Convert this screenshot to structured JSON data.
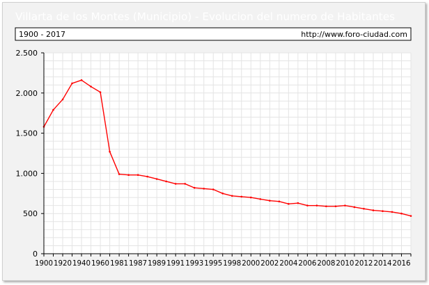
{
  "chart_data": {
    "type": "line",
    "title": "Villarta de los Montes (Municipio) - Evolucion del numero de Habitantes",
    "period": "1900 - 2017",
    "source": "http://www.foro-ciudad.com",
    "xlabel": "",
    "ylabel": "",
    "ylim": [
      0,
      2500
    ],
    "yticks": [
      0,
      500,
      1000,
      1500,
      2000,
      2500
    ],
    "ytick_labels": [
      "0",
      "500",
      "1.000",
      "1.500",
      "2.000",
      "2.500"
    ],
    "categories": [
      "1900",
      "1910",
      "1920",
      "1930",
      "1940",
      "1950",
      "1960",
      "1970",
      "1981",
      "1986",
      "1987",
      "1988",
      "1989",
      "1990",
      "1991",
      "1992",
      "1993",
      "1994",
      "1995",
      "1996",
      "1998",
      "1999",
      "2000",
      "2001",
      "2002",
      "2003",
      "2004",
      "2005",
      "2006",
      "2007",
      "2008",
      "2009",
      "2010",
      "2011",
      "2012",
      "2013",
      "2014",
      "2015",
      "2016",
      "2017"
    ],
    "xtick_labels": [
      "1900",
      "1920",
      "1940",
      "1960",
      "1981",
      "1987",
      "1989",
      "1991",
      "1993",
      "1995",
      "1998",
      "2000",
      "2002",
      "2004",
      "2006",
      "2008",
      "2010",
      "2012",
      "2014",
      "2016"
    ],
    "grid": true,
    "legend": "none",
    "series": [
      {
        "color": "#ff0000",
        "values": [
          1580,
          1790,
          1920,
          2120,
          2160,
          2080,
          2010,
          1270,
          990,
          980,
          980,
          960,
          930,
          900,
          870,
          870,
          820,
          810,
          800,
          750,
          720,
          710,
          700,
          680,
          660,
          650,
          620,
          630,
          600,
          600,
          590,
          590,
          600,
          580,
          560,
          540,
          530,
          520,
          500,
          470
        ]
      }
    ]
  }
}
